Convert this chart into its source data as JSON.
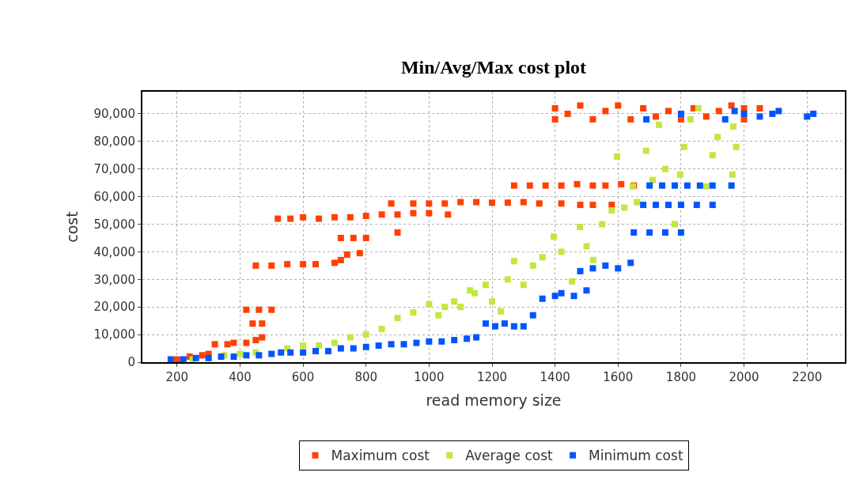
{
  "chart_data": {
    "type": "scatter",
    "title": "Min/Avg/Max cost plot",
    "xlabel": "read memory size",
    "ylabel": "cost",
    "xlim": [
      90,
      2320
    ],
    "ylim": [
      0,
      98000
    ],
    "xticks": [
      200,
      400,
      600,
      800,
      1000,
      1200,
      1400,
      1600,
      1800,
      2000,
      2200
    ],
    "yticks": [
      0,
      {
        "value": 10000,
        "label": "10,000"
      },
      {
        "value": 20000,
        "label": "20,000"
      },
      {
        "value": 30000,
        "label": "30,000"
      },
      {
        "value": 40000,
        "label": "40,000"
      },
      {
        "value": 50000,
        "label": "50,000"
      },
      {
        "value": 60000,
        "label": "60,000"
      },
      {
        "value": 70000,
        "label": "70,000"
      },
      {
        "value": 80000,
        "label": "80,000"
      },
      {
        "value": 90000,
        "label": "90,000"
      }
    ],
    "grid": true,
    "legend": "bottom",
    "marker": "square",
    "series": [
      {
        "name": "Maximum cost",
        "color": "#ff4000",
        "x": [
          200,
          240,
          280,
          300,
          320,
          360,
          380,
          420,
          450,
          470,
          440,
          470,
          420,
          460,
          500,
          450,
          500,
          550,
          600,
          640,
          700,
          720,
          740,
          780,
          720,
          760,
          800,
          900,
          520,
          560,
          600,
          650,
          700,
          750,
          800,
          850,
          900,
          950,
          1000,
          1060,
          880,
          950,
          1000,
          1050,
          1100,
          1150,
          1200,
          1250,
          1300,
          1350,
          1420,
          1480,
          1520,
          1580,
          1270,
          1320,
          1370,
          1420,
          1470,
          1520,
          1560,
          1610,
          1650,
          1400,
          1400,
          1440,
          1480,
          1520,
          1560,
          1600,
          1640,
          1680,
          1720,
          1760,
          1800,
          1840,
          1880,
          1920,
          1960,
          2000,
          2000,
          2050
        ],
        "values": [
          1000,
          2000,
          2500,
          3000,
          6500,
          6500,
          7000,
          7000,
          8000,
          9000,
          14000,
          14000,
          19000,
          19000,
          19000,
          35000,
          35000,
          35500,
          35500,
          35500,
          36000,
          37000,
          39000,
          39500,
          45000,
          45000,
          45000,
          47000,
          52000,
          52000,
          52500,
          52000,
          52500,
          52500,
          53000,
          53500,
          53500,
          54000,
          54000,
          53500,
          57500,
          57500,
          57500,
          57500,
          58000,
          58000,
          57800,
          57800,
          58000,
          57500,
          57500,
          57000,
          57000,
          57000,
          64000,
          64000,
          64000,
          64000,
          64500,
          64000,
          64000,
          64500,
          64000,
          92000,
          88000,
          90000,
          93000,
          88000,
          91000,
          93000,
          88000,
          92000,
          89000,
          91000,
          88000,
          92000,
          89000,
          91000,
          93000,
          88000,
          92000,
          92000
        ]
      },
      {
        "name": "Average cost",
        "color": "#c0e840",
        "x": [
          250,
          350,
          400,
          450,
          550,
          600,
          650,
          700,
          750,
          800,
          850,
          900,
          950,
          1000,
          1030,
          1050,
          1080,
          1100,
          1130,
          1145,
          1180,
          1200,
          1228,
          1250,
          1270,
          1300,
          1330,
          1360,
          1396,
          1420,
          1454,
          1479,
          1500,
          1521,
          1550,
          1580,
          1597,
          1620,
          1647,
          1660,
          1689,
          1710,
          1730,
          1750,
          1780,
          1797,
          1810,
          1830,
          1855,
          1880,
          1900,
          1916,
          1963,
          1966,
          1975
        ],
        "values": [
          1000,
          2500,
          3000,
          3500,
          5000,
          6000,
          6000,
          7000,
          9000,
          10000,
          12000,
          16000,
          18000,
          21000,
          17000,
          20000,
          22000,
          20000,
          26000,
          25000,
          28000,
          22000,
          18400,
          30000,
          36600,
          28000,
          35000,
          38000,
          45500,
          40000,
          29300,
          49000,
          42000,
          37000,
          50000,
          55000,
          74500,
          56000,
          63700,
          58000,
          76600,
          66000,
          86000,
          70000,
          50000,
          68000,
          78000,
          88000,
          92000,
          63700,
          75000,
          81600,
          68000,
          85400,
          78000
        ]
      },
      {
        "name": "Minimum cost",
        "color": "#0055ff",
        "x": [
          180,
          220,
          260,
          300,
          340,
          380,
          420,
          460,
          500,
          530,
          560,
          600,
          640,
          680,
          720,
          760,
          800,
          840,
          880,
          920,
          960,
          1000,
          1040,
          1080,
          1120,
          1150,
          1180,
          1210,
          1240,
          1270,
          1300,
          1330,
          1360,
          1400,
          1420,
          1460,
          1500,
          1480,
          1520,
          1560,
          1600,
          1640,
          1650,
          1700,
          1750,
          1800,
          1680,
          1720,
          1760,
          1800,
          1850,
          1900,
          1700,
          1740,
          1780,
          1820,
          1860,
          1900,
          1960,
          1690,
          1800,
          1940,
          1970,
          2000,
          2050,
          2090,
          2110,
          2200,
          2220
        ],
        "values": [
          1000,
          1000,
          1500,
          1500,
          2000,
          2000,
          2500,
          2500,
          3000,
          3500,
          3500,
          3500,
          4000,
          4000,
          5000,
          5000,
          5500,
          6000,
          6500,
          6500,
          7000,
          7500,
          7500,
          8000,
          8500,
          9000,
          14000,
          13000,
          14000,
          13000,
          13000,
          17000,
          23000,
          24000,
          25000,
          24000,
          26000,
          33000,
          34000,
          35000,
          34000,
          36000,
          47000,
          47000,
          47000,
          47000,
          57000,
          57000,
          57000,
          57000,
          57000,
          57000,
          64000,
          64000,
          64000,
          64000,
          64000,
          64000,
          64000,
          88000,
          90000,
          88000,
          91000,
          90000,
          89000,
          90000,
          91000,
          89000,
          90000
        ]
      }
    ]
  }
}
